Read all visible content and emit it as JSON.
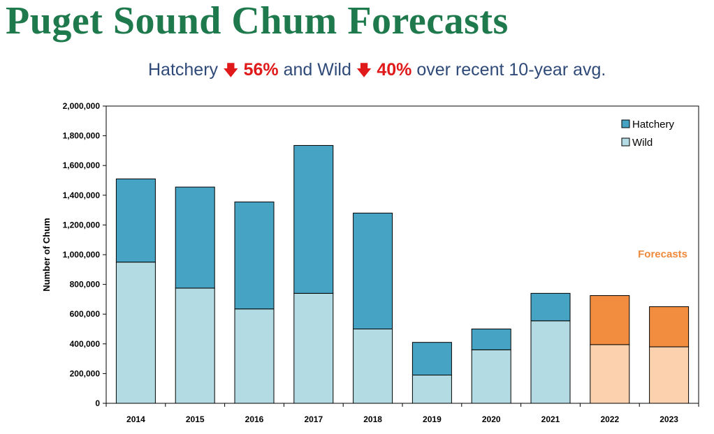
{
  "header": {
    "title": "Puget Sound Chum Forecasts",
    "sub_hatchery": "Hatchery",
    "sub_hatchery_pct": "56%",
    "sub_and_wild": "and Wild",
    "sub_wild_pct": "40%",
    "sub_rest": "over recent 10-year avg.",
    "arrow_icon": "down-arrow-icon"
  },
  "colors": {
    "title": "#1e7a4c",
    "hatchery": "#46a3c3",
    "wild": "#b3dbe3",
    "forecast_hatchery": "#f28c3e",
    "forecast_wild": "#fbd2ad",
    "forecast_label": "#ef8a3c",
    "down_arrow": "#e01a1a"
  },
  "chart_data": {
    "type": "bar",
    "stacked": true,
    "ylabel": "Number of Chum",
    "xlabel": "",
    "ylim": [
      0,
      2000000
    ],
    "y_ticks": [
      "0",
      "200,000",
      "400,000",
      "600,000",
      "800,000",
      "1,000,000",
      "1,200,000",
      "1,400,000",
      "1,600,000",
      "1,800,000",
      "2,000,000"
    ],
    "categories": [
      "2014",
      "2015",
      "2016",
      "2017",
      "2018",
      "2019",
      "2020",
      "2021",
      "2022",
      "2023"
    ],
    "forecast_categories": [
      "2022",
      "2023"
    ],
    "series": [
      {
        "name": "Wild",
        "values": [
          950000,
          775000,
          635000,
          740000,
          500000,
          190000,
          360000,
          555000,
          395000,
          380000
        ]
      },
      {
        "name": "Hatchery",
        "values": [
          560000,
          680000,
          720000,
          995000,
          780000,
          220000,
          140000,
          185000,
          330000,
          270000
        ]
      }
    ],
    "legend": {
      "position": "top-right",
      "entries": [
        "Hatchery",
        "Wild"
      ]
    },
    "annotation": "Forecasts",
    "grid": false
  }
}
